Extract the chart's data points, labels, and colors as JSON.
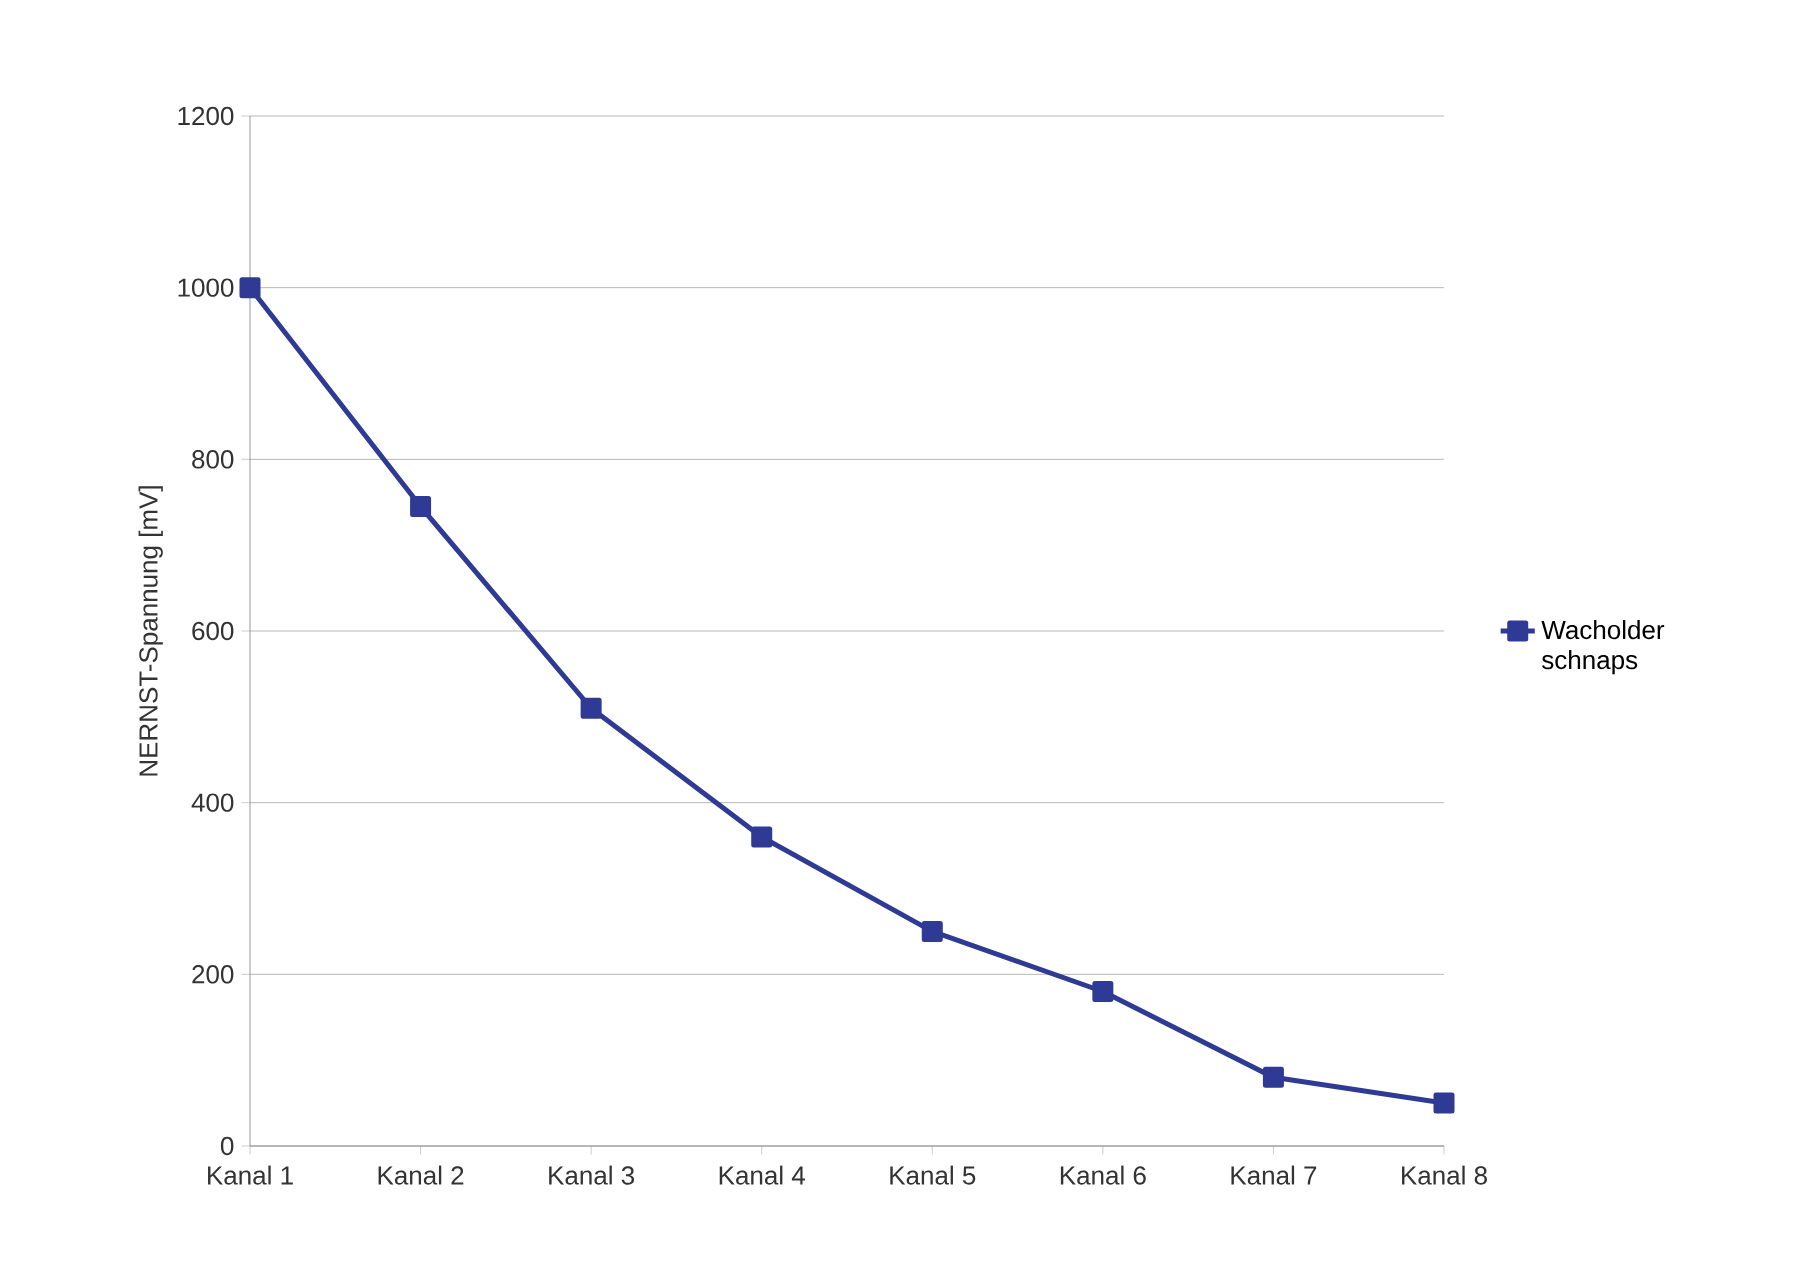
{
  "chart_data": {
    "type": "line",
    "ylabel": "NERNST-Spannung [mV]",
    "categories": [
      "Kanal 1",
      "Kanal 2",
      "Kanal 3",
      "Kanal 4",
      "Kanal 5",
      "Kanal 6",
      "Kanal 7",
      "Kanal 8"
    ],
    "series": [
      {
        "name": "Wacholder schnaps",
        "color": "#2e3a94",
        "values": [
          1000,
          745,
          510,
          360,
          250,
          180,
          80,
          50
        ]
      }
    ],
    "ylim": [
      0,
      1200
    ],
    "yticks": [
      0,
      200,
      400,
      600,
      800,
      1000,
      1200
    ],
    "grid": "y",
    "legend": "right",
    "marker": "square",
    "line_style": "solid"
  }
}
